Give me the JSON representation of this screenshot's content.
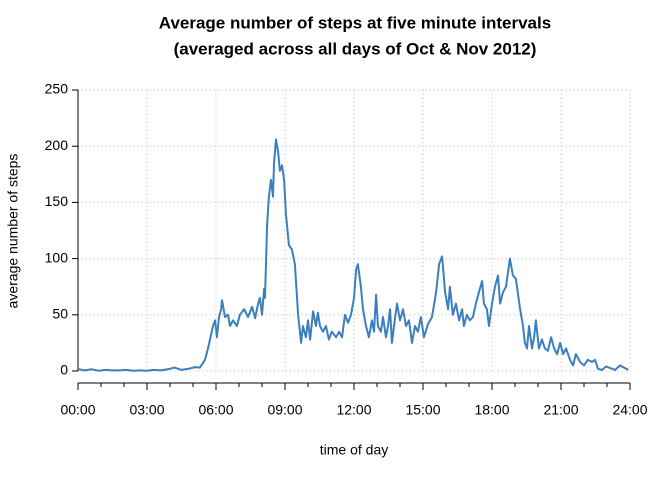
{
  "chart_data": {
    "type": "line",
    "title": [
      "Average number of steps at five minute intervals",
      "(averaged across all days of Oct & Nov 2012)"
    ],
    "xlabel": "time of day",
    "ylabel": "average number of steps",
    "grid": true,
    "xlim": [
      0,
      24
    ],
    "ylim": [
      0,
      250
    ],
    "xticks": [
      {
        "value": 0,
        "label": "00:00"
      },
      {
        "value": 3,
        "label": "03:00"
      },
      {
        "value": 6,
        "label": "06:00"
      },
      {
        "value": 9,
        "label": "09:00"
      },
      {
        "value": 12,
        "label": "12:00"
      },
      {
        "value": 15,
        "label": "15:00"
      },
      {
        "value": 18,
        "label": "18:00"
      },
      {
        "value": 21,
        "label": "21:00"
      },
      {
        "value": 24,
        "label": "24:00"
      }
    ],
    "xminorticks": [
      1,
      2,
      4,
      5,
      7,
      8,
      10,
      11,
      13,
      14,
      16,
      17,
      19,
      20,
      22,
      23
    ],
    "yticks": [
      0,
      50,
      100,
      150,
      200,
      250
    ],
    "series": [
      {
        "name": "average number of steps",
        "color": "#3c7fbf",
        "x": [
          0,
          0.3,
          0.6,
          0.9,
          1.2,
          1.5,
          1.8,
          2.1,
          2.4,
          2.7,
          3.0,
          3.3,
          3.6,
          3.9,
          4.2,
          4.5,
          4.8,
          5.1,
          5.3,
          5.52,
          5.65,
          5.87,
          5.96,
          6.04,
          6.13,
          6.22,
          6.26,
          6.39,
          6.52,
          6.61,
          6.74,
          6.91,
          7.04,
          7.22,
          7.39,
          7.57,
          7.7,
          7.83,
          7.91,
          8.0,
          8.09,
          8.13,
          8.22,
          8.3,
          8.39,
          8.48,
          8.52,
          8.61,
          8.7,
          8.78,
          8.87,
          8.96,
          9.04,
          9.17,
          9.3,
          9.43,
          9.57,
          9.7,
          9.78,
          9.91,
          10.0,
          10.09,
          10.22,
          10.35,
          10.43,
          10.52,
          10.65,
          10.78,
          10.91,
          11.04,
          11.22,
          11.35,
          11.48,
          11.61,
          11.74,
          11.87,
          12.0,
          12.09,
          12.17,
          12.3,
          12.39,
          12.52,
          12.65,
          12.78,
          12.87,
          12.96,
          13.04,
          13.17,
          13.26,
          13.39,
          13.48,
          13.57,
          13.65,
          13.74,
          13.87,
          14.0,
          14.13,
          14.26,
          14.39,
          14.52,
          14.65,
          14.78,
          14.91,
          15.04,
          15.22,
          15.39,
          15.57,
          15.7,
          15.83,
          15.96,
          16.09,
          16.17,
          16.3,
          16.43,
          16.57,
          16.7,
          16.78,
          16.91,
          17.04,
          17.17,
          17.3,
          17.43,
          17.57,
          17.65,
          17.78,
          17.87,
          18.0,
          18.13,
          18.26,
          18.35,
          18.48,
          18.61,
          18.78,
          18.91,
          19.04,
          19.22,
          19.35,
          19.43,
          19.52,
          19.61,
          19.74,
          19.83,
          19.91,
          20.04,
          20.17,
          20.3,
          20.43,
          20.57,
          20.7,
          20.83,
          20.96,
          21.09,
          21.22,
          21.39,
          21.52,
          21.65,
          21.83,
          22.0,
          22.17,
          22.35,
          22.48,
          22.61,
          22.78,
          22.96,
          23.22,
          23.35,
          23.57,
          23.74,
          23.92
        ],
        "values": [
          1.7,
          0.5,
          1.5,
          0.3,
          1,
          0.5,
          0.5,
          1,
          0.3,
          0.5,
          0.3,
          1,
          0.5,
          1.5,
          3,
          1,
          2,
          3.5,
          3,
          10,
          20,
          40,
          45,
          30,
          48,
          55,
          63,
          48,
          50,
          40,
          45,
          40,
          50,
          55,
          48,
          57,
          47,
          60,
          65,
          50,
          73,
          65,
          130,
          155,
          170,
          155,
          185,
          206,
          195,
          178,
          183,
          170,
          140,
          112,
          108,
          95,
          50,
          25,
          40,
          30,
          45,
          28,
          53,
          40,
          52,
          40,
          35,
          40,
          28,
          35,
          30,
          35,
          30,
          50,
          43,
          50,
          65,
          90,
          95,
          75,
          55,
          40,
          30,
          45,
          35,
          68,
          40,
          35,
          48,
          30,
          40,
          55,
          25,
          40,
          60,
          45,
          55,
          40,
          45,
          25,
          40,
          35,
          48,
          30,
          42,
          48,
          70,
          95,
          102,
          70,
          55,
          75,
          50,
          60,
          45,
          55,
          40,
          50,
          45,
          48,
          60,
          70,
          80,
          60,
          55,
          40,
          60,
          75,
          85,
          60,
          70,
          75,
          100,
          85,
          82,
          55,
          40,
          25,
          20,
          40,
          20,
          30,
          45,
          20,
          28,
          20,
          18,
          30,
          20,
          15,
          25,
          15,
          20,
          10,
          5,
          15,
          8,
          5,
          10,
          8,
          10,
          2,
          1,
          4,
          2,
          1,
          5,
          3,
          1
        ]
      }
    ]
  }
}
